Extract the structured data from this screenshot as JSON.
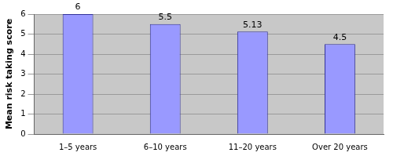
{
  "chart_data": {
    "type": "bar",
    "y_label": "Mean risk taking score",
    "categories": [
      "1–5 years",
      "6–10 years",
      "11–20 years",
      "Over 20 years"
    ],
    "values": [
      6,
      5.5,
      5.13,
      4.5
    ],
    "color": "#9999ff",
    "ylim": [
      0,
      6
    ],
    "yticks": [
      0,
      1,
      2,
      3,
      4,
      5,
      6
    ],
    "grid": true,
    "data_labels": true
  }
}
